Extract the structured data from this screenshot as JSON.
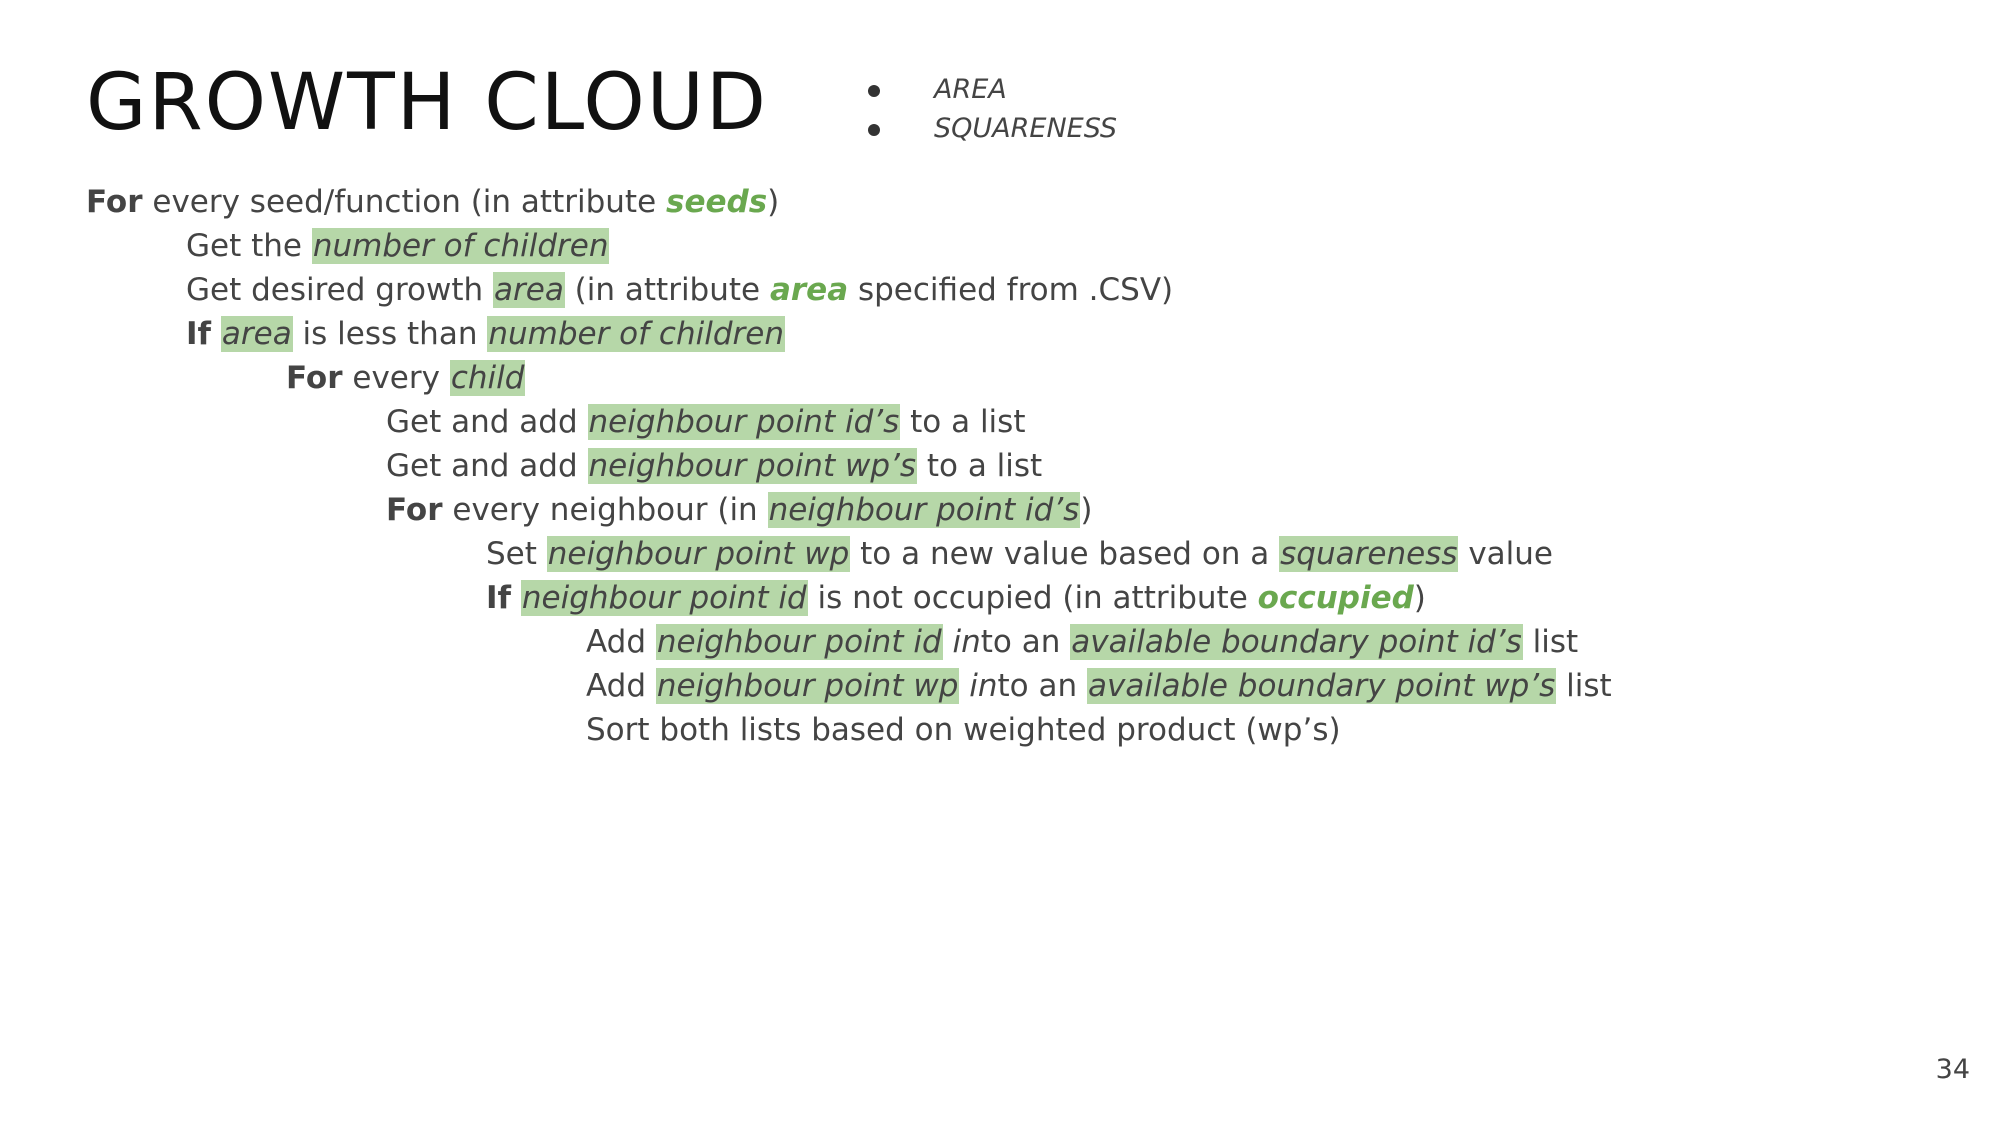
{
  "title": "GROWTH CLOUD",
  "attributes": [
    "AREA",
    "SQUARENESS"
  ],
  "code": {
    "l1": {
      "kw": "For",
      "t1": " every seed/function (in attribute ",
      "attr": "seeds",
      "t2": ")"
    },
    "l2": {
      "t1": "Get the ",
      "hl": "number of children"
    },
    "l3": {
      "t1": "Get desired growth ",
      "hl": "area",
      "t2": " (in attribute ",
      "attr": "area",
      "t3": " specified from .CSV)"
    },
    "l4": {
      "kw": "If",
      "t1": " ",
      "hl1": "area",
      "t2": " is less than ",
      "hl2": "number of children"
    },
    "l5": {
      "kw": "For",
      "t1": " every ",
      "hl": "child"
    },
    "l6": {
      "t1": "Get and add ",
      "hl": "neighbour point id’s",
      "t2": " to a list"
    },
    "l7": {
      "t1": "Get and add ",
      "hl": "neighbour point wp’s",
      "t2": " to a list"
    },
    "l8": {
      "kw": "For",
      "t1": " every neighbour (in ",
      "hl": "neighbour point id’s",
      "t2": ")"
    },
    "l9": {
      "t1": "Set ",
      "hl1": "neighbour point wp",
      "t2": " to a new value based on a ",
      "hl2": "squareness",
      "t3": " value"
    },
    "l10": {
      "kw": "If",
      "t1": " ",
      "hl": "neighbour point id",
      "t2": " is not occupied (in attribute ",
      "attr": "occupied",
      "t3": ")"
    },
    "l11": {
      "t1": "Add ",
      "hl1": "neighbour point id",
      "it": " in",
      "t2": "to an ",
      "hl2": "available boundary point id’s",
      "t3": " list"
    },
    "l12": {
      "t1": "Add ",
      "hl1": "neighbour point wp",
      "it": " in",
      "t2": "to an ",
      "hl2": "available boundary point wp’s",
      "t3": " list"
    },
    "l13": {
      "t1": "Sort both lists based on weighted product (wp’s)"
    }
  },
  "page_number": "34"
}
